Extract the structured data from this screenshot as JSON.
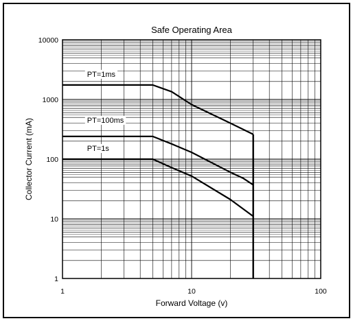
{
  "chart_data": {
    "type": "line",
    "title": "Safe Operating Area",
    "xlabel": "Forward Voltage (v)",
    "ylabel": "Collector Current (mA)",
    "x_scale": "log",
    "y_scale": "log",
    "xlim": [
      1,
      100
    ],
    "ylim": [
      1,
      10000
    ],
    "x_ticks": [
      "1",
      "10",
      "100"
    ],
    "y_ticks": [
      "1",
      "10",
      "100",
      "1000",
      "10000"
    ],
    "grid": true,
    "series": [
      {
        "name": "PT=1ms",
        "points": [
          [
            1,
            1750
          ],
          [
            5,
            1750
          ],
          [
            7,
            1350
          ],
          [
            10,
            820
          ],
          [
            20,
            400
          ],
          [
            30,
            260
          ]
        ]
      },
      {
        "name": "PT=100ms",
        "points": [
          [
            1,
            240
          ],
          [
            5,
            240
          ],
          [
            7,
            180
          ],
          [
            10,
            130
          ],
          [
            20,
            60
          ],
          [
            25,
            48
          ],
          [
            30,
            37
          ]
        ]
      },
      {
        "name": "PT=1s",
        "points": [
          [
            1,
            100
          ],
          [
            5,
            100
          ],
          [
            7,
            72
          ],
          [
            10,
            52
          ],
          [
            20,
            21
          ],
          [
            30,
            11
          ]
        ]
      }
    ],
    "vertical_limit": {
      "x": 30,
      "y_from": 1,
      "y_to": 260
    }
  }
}
